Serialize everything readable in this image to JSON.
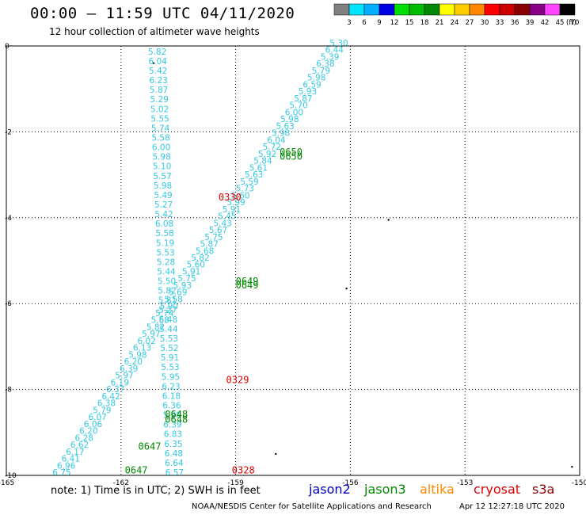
{
  "header": {
    "title": "00:00 – 11:59 UTC 04/11/2020",
    "subtitle": "12 hour collection of altimeter wave heights"
  },
  "legend": {
    "unit": "(ft)",
    "bins": [
      {
        "label": "3",
        "color": "#808080"
      },
      {
        "label": "6",
        "color": "#00e5ff"
      },
      {
        "label": "9",
        "color": "#00b0ff"
      },
      {
        "label": "12",
        "color": "#0000e0"
      },
      {
        "label": "15",
        "color": "#00dd00"
      },
      {
        "label": "18",
        "color": "#00bb00"
      },
      {
        "label": "21",
        "color": "#008800"
      },
      {
        "label": "24",
        "color": "#ffff00"
      },
      {
        "label": "27",
        "color": "#ffcc00"
      },
      {
        "label": "30",
        "color": "#ff8800"
      },
      {
        "label": "33",
        "color": "#ff0000"
      },
      {
        "label": "36",
        "color": "#cc0000"
      },
      {
        "label": "39",
        "color": "#880000"
      },
      {
        "label": "42",
        "color": "#880088"
      },
      {
        "label": "45",
        "color": "#ff44ff"
      },
      {
        "label": "70",
        "color": "#000000"
      }
    ]
  },
  "note": "note: 1) Time is in UTC; 2) SWH is in feet",
  "satellites": [
    {
      "name": "jason2",
      "color": "#0000cc"
    },
    {
      "name": "jason3",
      "color": "#008800"
    },
    {
      "name": "altika",
      "color": "#ff8800"
    },
    {
      "name": "cryosat",
      "color": "#dd0000"
    },
    {
      "name": "s3a",
      "color": "#880000"
    }
  ],
  "footer": {
    "source": "NOAA/NESDIS Center for Satellite Applications and Research",
    "timestamp": "Apr 12 12:27:18 UTC 2020"
  },
  "chart_data": {
    "type": "scatter",
    "xlim": [
      -165,
      -150
    ],
    "ylim": [
      -10,
      0
    ],
    "x_ticks": [
      -165,
      -162,
      -159,
      -156,
      -153,
      -150
    ],
    "x_tick_labels": [
      "-165",
      "-162",
      "-159",
      "-156",
      "-153",
      "-150"
    ],
    "y_ticks": [
      0,
      -2,
      -4,
      -6,
      -8,
      -10
    ],
    "y_tick_labels": [
      "0",
      "-2",
      "-4",
      "-6",
      "-8",
      "-10"
    ],
    "grid": true,
    "tracks": [
      {
        "satellite": "jason3",
        "start": [
          -161.05,
          -0.2
        ],
        "end": [
          -160.6,
          -10.0
        ],
        "values": [
          "5.82",
          "6.04",
          "5.42",
          "6.23",
          "5.87",
          "5.29",
          "5.02",
          "5.55",
          "5.74",
          "5.58",
          "6.00",
          "5.98",
          "5.10",
          "5.57",
          "5.98",
          "5.49",
          "5.27",
          "5.42",
          "6.08",
          "5.58",
          "5.19",
          "5.53",
          "5.28",
          "5.44",
          "5.50",
          "5.82",
          "5.81",
          "5.27",
          "5.48",
          "5.44",
          "5.53",
          "5.52",
          "5.91",
          "5.53",
          "5.95",
          "6.23",
          "6.18",
          "6.36",
          "5.98",
          "6.39",
          "6.83",
          "6.35",
          "6.48",
          "6.64",
          "6.57"
        ]
      },
      {
        "satellite": "s3a",
        "start": [
          -156.3,
          0.0
        ],
        "end": [
          -163.55,
          -10.0
        ],
        "values": [
          "5.30",
          "6.44",
          "5.39",
          "6.38",
          "5.79",
          "5.98",
          "6.59",
          "5.93",
          "5.87",
          "5.70",
          "6.00",
          "5.98",
          "5.63",
          "5.98",
          "6.04",
          "5.72",
          "5.92",
          "5.84",
          "5.61",
          "5.63",
          "5.59",
          "5.73",
          "5.60",
          "5.99",
          "5.91",
          "5.45",
          "5.43",
          "5.67",
          "5.75",
          "5.87",
          "5.68",
          "5.82",
          "5.60",
          "5.91",
          "5.75",
          "5.93",
          "5.69",
          "5.58",
          "5.90",
          "5.74",
          "5.68",
          "5.82",
          "5.97",
          "6.02",
          "6.13",
          "5.98",
          "6.20",
          "6.39",
          "5.97",
          "6.19",
          "6.37",
          "6.42",
          "6.38",
          "5.79",
          "6.07",
          "6.06",
          "6.20",
          "6.28",
          "6.62",
          "6.17",
          "6.41",
          "6.96",
          "6.75"
        ]
      }
    ],
    "time_labels": [
      {
        "text": "0330",
        "lon": -159.45,
        "lat": -3.6,
        "satellite": "cryosat"
      },
      {
        "text": "0329",
        "lon": -159.25,
        "lat": -7.85,
        "satellite": "cryosat"
      },
      {
        "text": "0328",
        "lon": -159.1,
        "lat": -9.95,
        "satellite": "cryosat"
      },
      {
        "text": "0650",
        "lon": -157.85,
        "lat": -2.55,
        "satellite": "jason3"
      },
      {
        "text": "0650",
        "lon": -157.85,
        "lat": -2.65,
        "satellite": "jason3"
      },
      {
        "text": "0649",
        "lon": -159.0,
        "lat": -5.55,
        "satellite": "jason3"
      },
      {
        "text": "0649",
        "lon": -159.0,
        "lat": -5.65,
        "satellite": "jason3"
      },
      {
        "text": "0648",
        "lon": -160.85,
        "lat": -8.65,
        "satellite": "jason3"
      },
      {
        "text": "0648",
        "lon": -160.85,
        "lat": -8.77,
        "satellite": "jason3"
      },
      {
        "text": "0647",
        "lon": -161.55,
        "lat": -9.4,
        "satellite": "jason3"
      },
      {
        "text": "0647",
        "lon": -161.9,
        "lat": -9.95,
        "satellite": "jason3"
      }
    ]
  }
}
